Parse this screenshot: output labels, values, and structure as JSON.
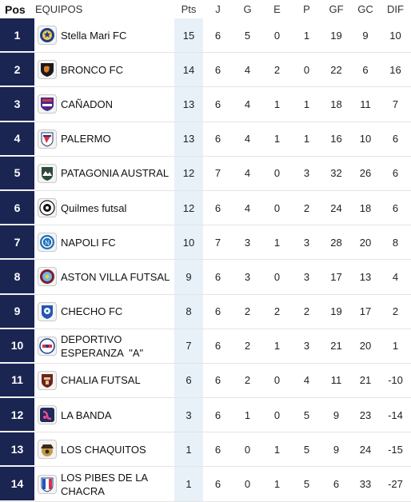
{
  "columns": {
    "pos": "Pos",
    "team": "EQUIPOS",
    "pts": "Pts",
    "j": "J",
    "g": "G",
    "e": "E",
    "p": "P",
    "gf": "GF",
    "gc": "GC",
    "dif": "DIF"
  },
  "rows": [
    {
      "pos": "1",
      "team": "Stella Mari FC",
      "crest_icon": "stella-mari-crest-icon",
      "pts": "15",
      "j": "6",
      "g": "5",
      "e": "0",
      "p": "1",
      "gf": "19",
      "gc": "9",
      "dif": "10"
    },
    {
      "pos": "2",
      "team": "BRONCO FC",
      "crest_icon": "bronco-crest-icon",
      "pts": "14",
      "j": "6",
      "g": "4",
      "e": "2",
      "p": "0",
      "gf": "22",
      "gc": "6",
      "dif": "16"
    },
    {
      "pos": "3",
      "team": "CAÑADON",
      "crest_icon": "canadon-crest-icon",
      "pts": "13",
      "j": "6",
      "g": "4",
      "e": "1",
      "p": "1",
      "gf": "18",
      "gc": "11",
      "dif": "7"
    },
    {
      "pos": "4",
      "team": "PALERMO",
      "crest_icon": "palermo-crest-icon",
      "pts": "13",
      "j": "6",
      "g": "4",
      "e": "1",
      "p": "1",
      "gf": "16",
      "gc": "10",
      "dif": "6"
    },
    {
      "pos": "5",
      "team": "PATAGONIA AUSTRAL",
      "crest_icon": "patagonia-crest-icon",
      "pts": "12",
      "j": "7",
      "g": "4",
      "e": "0",
      "p": "3",
      "gf": "32",
      "gc": "26",
      "dif": "6"
    },
    {
      "pos": "6",
      "team": "Quilmes futsal",
      "crest_icon": "quilmes-crest-icon",
      "pts": "12",
      "j": "6",
      "g": "4",
      "e": "0",
      "p": "2",
      "gf": "24",
      "gc": "18",
      "dif": "6"
    },
    {
      "pos": "7",
      "team": "NAPOLI FC",
      "crest_icon": "napoli-crest-icon",
      "pts": "10",
      "j": "7",
      "g": "3",
      "e": "1",
      "p": "3",
      "gf": "28",
      "gc": "20",
      "dif": "8"
    },
    {
      "pos": "8",
      "team": "ASTON VILLA FUTSAL",
      "crest_icon": "aston-villa-crest-icon",
      "pts": "9",
      "j": "6",
      "g": "3",
      "e": "0",
      "p": "3",
      "gf": "17",
      "gc": "13",
      "dif": "4"
    },
    {
      "pos": "9",
      "team": "CHECHO FC",
      "crest_icon": "checho-crest-icon",
      "pts": "8",
      "j": "6",
      "g": "2",
      "e": "2",
      "p": "2",
      "gf": "19",
      "gc": "17",
      "dif": "2"
    },
    {
      "pos": "10",
      "team": "DEPORTIVO\nESPERANZA  \"A\"",
      "crest_icon": "deportivo-esperanza-crest-icon",
      "pts": "7",
      "j": "6",
      "g": "2",
      "e": "1",
      "p": "3",
      "gf": "21",
      "gc": "20",
      "dif": "1"
    },
    {
      "pos": "11",
      "team": "CHALIA FUTSAL",
      "crest_icon": "chalia-crest-icon",
      "pts": "6",
      "j": "6",
      "g": "2",
      "e": "0",
      "p": "4",
      "gf": "11",
      "gc": "21",
      "dif": "-10"
    },
    {
      "pos": "12",
      "team": "LA BANDA",
      "crest_icon": "la-banda-crest-icon",
      "pts": "3",
      "j": "6",
      "g": "1",
      "e": "0",
      "p": "5",
      "gf": "9",
      "gc": "23",
      "dif": "-14"
    },
    {
      "pos": "13",
      "team": "LOS CHAQUITOS",
      "crest_icon": "los-chaquitos-crest-icon",
      "pts": "1",
      "j": "6",
      "g": "0",
      "e": "1",
      "p": "5",
      "gf": "9",
      "gc": "24",
      "dif": "-15"
    },
    {
      "pos": "14",
      "team": "LOS PIBES DE LA\nCHACRA",
      "crest_icon": "los-pibes-crest-icon",
      "pts": "1",
      "j": "6",
      "g": "0",
      "e": "1",
      "p": "5",
      "gf": "6",
      "gc": "33",
      "dif": "-27"
    }
  ],
  "colors": {
    "pos_background": "#1b2552",
    "pts_background": "#e8f1f8"
  }
}
